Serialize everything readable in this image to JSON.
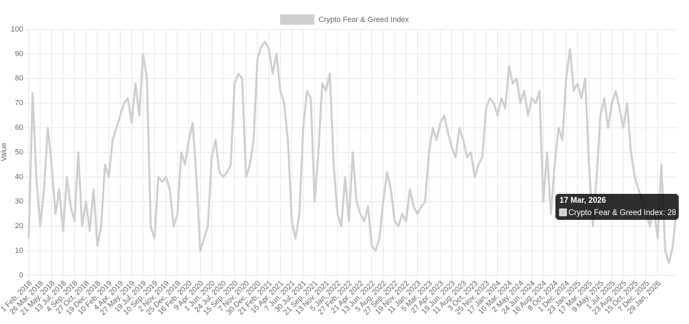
{
  "chart_data": {
    "type": "line",
    "y_label": "Value",
    "categories": [
      "1 Feb, 2018",
      null,
      null,
      "26 Mar, 2018",
      null,
      null,
      "21 May, 2018",
      null,
      null,
      "13 Jul, 2018",
      null,
      null,
      "4 Sep, 2018",
      null,
      null,
      "27 Oct, 2018",
      null,
      null,
      "19 Dec, 2018",
      null,
      null,
      "10 Feb, 2019",
      null,
      null,
      "4 Apr, 2019",
      null,
      null,
      "27 May, 2019",
      null,
      null,
      "19 Jul, 2019",
      null,
      null,
      "10 Sep, 2019",
      null,
      null,
      "2 Nov, 2019",
      null,
      null,
      "25 Dec, 2019",
      null,
      null,
      "16 Feb, 2020",
      null,
      null,
      "9 Apr, 2020",
      null,
      null,
      "1 Jun, 2020",
      null,
      null,
      "24 Jul, 2020",
      null,
      null,
      "15 Sep, 2020",
      null,
      null,
      "7 Nov, 2020",
      null,
      null,
      "30 Dec, 2020",
      null,
      null,
      "21 Feb, 2021",
      null,
      null,
      "15 Apr, 2021",
      null,
      null,
      "7 Jun, 2021",
      null,
      null,
      "30 Jul, 2021",
      null,
      null,
      "21 Sep, 2021",
      null,
      null,
      "13 Nov, 2021",
      null,
      null,
      "5 Jan, 2022",
      null,
      null,
      "27 Feb, 2022",
      null,
      null,
      "21 Apr, 2022",
      null,
      null,
      "13 Jun, 2022",
      null,
      null,
      "5 Aug, 2022",
      null,
      null,
      "27 Sep, 2022",
      null,
      null,
      "19 Nov, 2022",
      null,
      null,
      "11 Jan, 2023",
      null,
      null,
      "5 Mar, 2023",
      null,
      null,
      "27 Apr, 2023",
      null,
      null,
      "19 Jun, 2023",
      null,
      null,
      "11 Aug, 2023",
      null,
      null,
      "3 Oct, 2023",
      null,
      null,
      "25 Nov, 2023",
      null,
      null,
      "17 Jan, 2024",
      null,
      null,
      "10 Mar, 2024",
      null,
      null,
      "2 May, 2024",
      null,
      null,
      "24 Jun, 2024",
      null,
      null,
      "16 Aug, 2024",
      null,
      null,
      "8 Oct, 2024",
      null,
      null,
      "1 Dec, 2024",
      null,
      null,
      "23 Jan, 2025",
      null,
      null,
      "17 Mar, 2025",
      null,
      null,
      "9 May, 2025",
      null,
      null,
      "1 Jul, 2025",
      null,
      null,
      "23 Aug, 2025",
      null,
      null,
      "15 Oct, 2025",
      null,
      null,
      "7 Dec, 2025",
      null,
      null,
      "29 Jan, 2026",
      null,
      null,
      null,
      null,
      null
    ],
    "series": [
      {
        "name": "Crypto Fear & Greed Index",
        "color": "#cfcfcf",
        "values": [
          15,
          74,
          40,
          20,
          35,
          60,
          45,
          25,
          35,
          18,
          40,
          28,
          22,
          50,
          20,
          30,
          18,
          35,
          12,
          20,
          45,
          40,
          55,
          60,
          65,
          70,
          72,
          62,
          78,
          65,
          90,
          80,
          20,
          15,
          40,
          38,
          40,
          35,
          20,
          25,
          50,
          45,
          55,
          62,
          40,
          10,
          15,
          20,
          48,
          55,
          42,
          40,
          42,
          45,
          78,
          82,
          80,
          40,
          45,
          55,
          88,
          93,
          95,
          92,
          82,
          90,
          75,
          70,
          55,
          22,
          15,
          25,
          60,
          75,
          72,
          30,
          50,
          78,
          75,
          82,
          45,
          25,
          20,
          40,
          22,
          50,
          30,
          25,
          22,
          28,
          12,
          10,
          15,
          30,
          42,
          35,
          22,
          20,
          25,
          22,
          35,
          28,
          25,
          28,
          30,
          50,
          60,
          55,
          62,
          65,
          58,
          52,
          48,
          60,
          55,
          48,
          50,
          40,
          45,
          48,
          68,
          72,
          70,
          65,
          72,
          68,
          85,
          78,
          80,
          70,
          75,
          65,
          72,
          70,
          75,
          30,
          50,
          25,
          45,
          60,
          55,
          80,
          92,
          75,
          78,
          72,
          80,
          45,
          20,
          40,
          65,
          72,
          60,
          70,
          75,
          68,
          60,
          70,
          50,
          40,
          35,
          30,
          25,
          20,
          28,
          15,
          45,
          10,
          5,
          12,
          28
        ]
      }
    ],
    "ylim": [
      0,
      100
    ],
    "yticks": [
      0,
      10,
      20,
      30,
      40,
      50,
      60,
      70,
      80,
      90,
      100
    ],
    "grid": true,
    "legend": "top",
    "tooltip": {
      "title": "17 Mar, 2026",
      "label": "Crypto Fear & Greed Index: 28"
    }
  }
}
